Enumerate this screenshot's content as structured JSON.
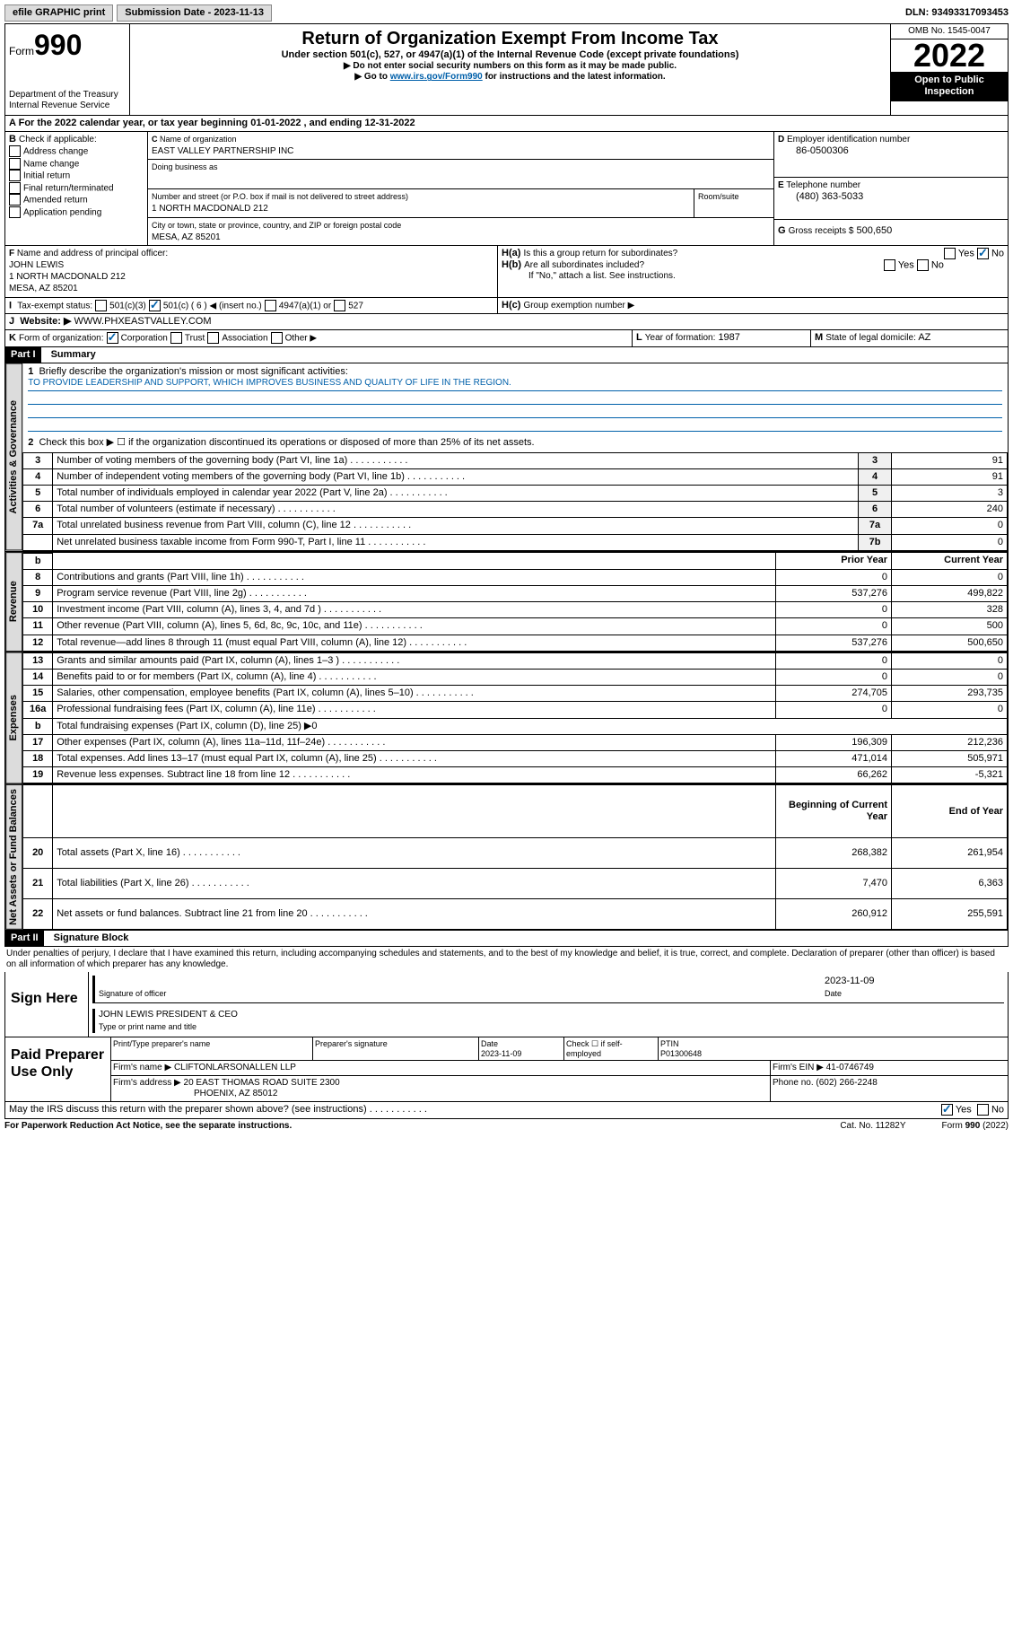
{
  "topbar": {
    "efile": "efile GRAPHIC print",
    "subdate_label": "Submission Date - 2023-11-13",
    "dln": "DLN: 93493317093453"
  },
  "header": {
    "form": "Form",
    "formnum": "990",
    "dept": "Department of the Treasury",
    "irs": "Internal Revenue Service",
    "title": "Return of Organization Exempt From Income Tax",
    "sub": "Under section 501(c), 527, or 4947(a)(1) of the Internal Revenue Code (except private foundations)",
    "note1": "▶ Do not enter social security numbers on this form as it may be made public.",
    "note2_pre": "▶ Go to ",
    "note2_link": "www.irs.gov/Form990",
    "note2_post": " for instructions and the latest information.",
    "omb": "OMB No. 1545-0047",
    "year": "2022",
    "inspect": "Open to Public Inspection"
  },
  "periodA": "For the 2022 calendar year, or tax year beginning 01-01-2022    , and ending 12-31-2022",
  "B": {
    "label": "Check if applicable:",
    "items": [
      "Address change",
      "Name change",
      "Initial return",
      "Final return/terminated",
      "Amended return",
      "Application pending"
    ]
  },
  "C": {
    "name_label": "Name of organization",
    "name": "EAST VALLEY PARTNERSHIP INC",
    "dba_label": "Doing business as",
    "addr_label": "Number and street (or P.O. box if mail is not delivered to street address)",
    "room_label": "Room/suite",
    "addr": "1 NORTH MACDONALD 212",
    "city_label": "City or town, state or province, country, and ZIP or foreign postal code",
    "city": "MESA, AZ  85201"
  },
  "D": {
    "label": "Employer identification number",
    "val": "86-0500306"
  },
  "E": {
    "label": "Telephone number",
    "val": "(480) 363-5033"
  },
  "G": {
    "label": "Gross receipts $",
    "val": "500,650"
  },
  "F": {
    "label": "Name and address of principal officer:",
    "name": "JOHN LEWIS",
    "addr1": "1 NORTH MACDONALD 212",
    "addr2": "MESA, AZ  85201"
  },
  "H": {
    "a": "Is this a group return for subordinates?",
    "b": "Are all subordinates included?",
    "b_note": "If \"No,\" attach a list. See instructions.",
    "c": "Group exemption number ▶",
    "yes": "Yes",
    "no": "No"
  },
  "I": {
    "label": "Tax-exempt status:",
    "opts": [
      "501(c)(3)",
      "501(c) ( 6 ) ◀ (insert no.)",
      "4947(a)(1) or",
      "527"
    ]
  },
  "J": {
    "label": "Website: ▶",
    "val": "WWW.PHXEASTVALLEY.COM"
  },
  "K": {
    "label": "Form of organization:",
    "opts": [
      "Corporation",
      "Trust",
      "Association",
      "Other ▶"
    ]
  },
  "L": {
    "label": "Year of formation:",
    "val": "1987"
  },
  "M": {
    "label": "State of legal domicile:",
    "val": "AZ"
  },
  "partI": {
    "hdr": "Part I",
    "title": "Summary",
    "l1": "Briefly describe the organization's mission or most significant activities:",
    "mission": "TO PROVIDE LEADERSHIP AND SUPPORT, WHICH IMPROVES BUSINESS AND QUALITY OF LIFE IN THE REGION.",
    "l2": "Check this box ▶ ☐  if the organization discontinued its operations or disposed of more than 25% of its net assets.",
    "sections": {
      "gov": "Activities & Governance",
      "rev": "Revenue",
      "exp": "Expenses",
      "net": "Net Assets or Fund Balances"
    },
    "cols": {
      "py": "Prior Year",
      "cy": "Current Year",
      "boy": "Beginning of Current Year",
      "eoy": "End of Year"
    },
    "lines_gov": [
      {
        "n": "3",
        "t": "Number of voting members of the governing body (Part VI, line 1a)",
        "k": "3",
        "v": "91"
      },
      {
        "n": "4",
        "t": "Number of independent voting members of the governing body (Part VI, line 1b)",
        "k": "4",
        "v": "91"
      },
      {
        "n": "5",
        "t": "Total number of individuals employed in calendar year 2022 (Part V, line 2a)",
        "k": "5",
        "v": "3"
      },
      {
        "n": "6",
        "t": "Total number of volunteers (estimate if necessary)",
        "k": "6",
        "v": "240"
      },
      {
        "n": "7a",
        "t": "Total unrelated business revenue from Part VIII, column (C), line 12",
        "k": "7a",
        "v": "0"
      },
      {
        "n": "",
        "t": "Net unrelated business taxable income from Form 990-T, Part I, line 11",
        "k": "7b",
        "v": "0"
      }
    ],
    "lines_rev": [
      {
        "n": "8",
        "t": "Contributions and grants (Part VIII, line 1h)",
        "py": "0",
        "cy": "0"
      },
      {
        "n": "9",
        "t": "Program service revenue (Part VIII, line 2g)",
        "py": "537,276",
        "cy": "499,822"
      },
      {
        "n": "10",
        "t": "Investment income (Part VIII, column (A), lines 3, 4, and 7d )",
        "py": "0",
        "cy": "328"
      },
      {
        "n": "11",
        "t": "Other revenue (Part VIII, column (A), lines 5, 6d, 8c, 9c, 10c, and 11e)",
        "py": "0",
        "cy": "500"
      },
      {
        "n": "12",
        "t": "Total revenue—add lines 8 through 11 (must equal Part VIII, column (A), line 12)",
        "py": "537,276",
        "cy": "500,650"
      }
    ],
    "lines_exp": [
      {
        "n": "13",
        "t": "Grants and similar amounts paid (Part IX, column (A), lines 1–3 )",
        "py": "0",
        "cy": "0"
      },
      {
        "n": "14",
        "t": "Benefits paid to or for members (Part IX, column (A), line 4)",
        "py": "0",
        "cy": "0"
      },
      {
        "n": "15",
        "t": "Salaries, other compensation, employee benefits (Part IX, column (A), lines 5–10)",
        "py": "274,705",
        "cy": "293,735"
      },
      {
        "n": "16a",
        "t": "Professional fundraising fees (Part IX, column (A), line 11e)",
        "py": "0",
        "cy": "0"
      },
      {
        "n": "b",
        "t": "Total fundraising expenses (Part IX, column (D), line 25) ▶0",
        "py": "",
        "cy": ""
      },
      {
        "n": "17",
        "t": "Other expenses (Part IX, column (A), lines 11a–11d, 11f–24e)",
        "py": "196,309",
        "cy": "212,236"
      },
      {
        "n": "18",
        "t": "Total expenses. Add lines 13–17 (must equal Part IX, column (A), line 25)",
        "py": "471,014",
        "cy": "505,971"
      },
      {
        "n": "19",
        "t": "Revenue less expenses. Subtract line 18 from line 12",
        "py": "66,262",
        "cy": "-5,321"
      }
    ],
    "lines_net": [
      {
        "n": "20",
        "t": "Total assets (Part X, line 16)",
        "py": "268,382",
        "cy": "261,954"
      },
      {
        "n": "21",
        "t": "Total liabilities (Part X, line 26)",
        "py": "7,470",
        "cy": "6,363"
      },
      {
        "n": "22",
        "t": "Net assets or fund balances. Subtract line 21 from line 20",
        "py": "260,912",
        "cy": "255,591"
      }
    ]
  },
  "partII": {
    "hdr": "Part II",
    "title": "Signature Block",
    "decl": "Under penalties of perjury, I declare that I have examined this return, including accompanying schedules and statements, and to the best of my knowledge and belief, it is true, correct, and complete. Declaration of preparer (other than officer) is based on all information of which preparer has any knowledge."
  },
  "sign": {
    "here": "Sign Here",
    "sigoff": "Signature of officer",
    "date": "Date",
    "dateval": "2023-11-09",
    "name": "JOHN LEWIS  PRESIDENT & CEO",
    "nametitle": "Type or print name and title"
  },
  "paid": {
    "label": "Paid Preparer Use Only",
    "cols": [
      "Print/Type preparer's name",
      "Preparer's signature",
      "Date",
      "",
      "PTIN"
    ],
    "date": "2023-11-09",
    "selfchk": "Check ☐ if self-employed",
    "ptin": "P01300648",
    "firm_label": "Firm's name    ▶",
    "firm": "CLIFTONLARSONALLEN LLP",
    "ein_label": "Firm's EIN ▶",
    "ein": "41-0746749",
    "addr_label": "Firm's address ▶",
    "addr1": "20 EAST THOMAS ROAD SUITE 2300",
    "addr2": "PHOENIX, AZ  85012",
    "phone_label": "Phone no.",
    "phone": "(602) 266-2248"
  },
  "footer": {
    "q": "May the IRS discuss this return with the preparer shown above? (see instructions)",
    "yes": "Yes",
    "no": "No",
    "pra": "For Paperwork Reduction Act Notice, see the separate instructions.",
    "cat": "Cat. No. 11282Y",
    "form": "Form 990 (2022)"
  }
}
